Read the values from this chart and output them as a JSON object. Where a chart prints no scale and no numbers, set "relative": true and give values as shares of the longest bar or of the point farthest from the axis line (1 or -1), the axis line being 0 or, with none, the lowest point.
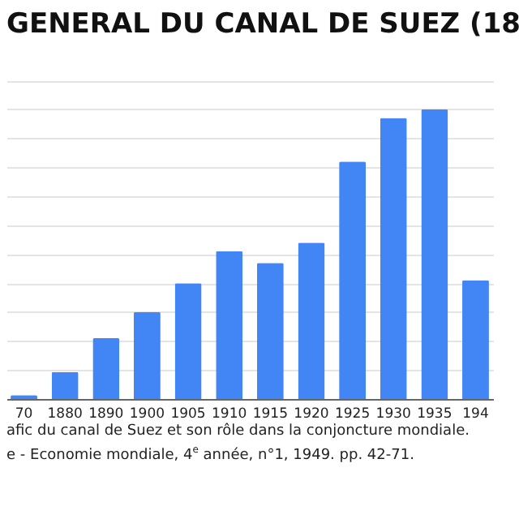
{
  "chart_data": {
    "type": "bar",
    "title": "GENERAL DU CANAL DE SUEZ (18",
    "relative": true,
    "grid": "y",
    "color": "#4285f4",
    "categories": [
      "70",
      "1880",
      "1890",
      "1900",
      "1905",
      "1910",
      "1915",
      "1920",
      "1925",
      "1930",
      "1935",
      "194"
    ],
    "values": [
      0.013,
      0.093,
      0.21,
      0.3,
      0.4,
      0.51,
      0.47,
      0.54,
      0.82,
      0.97,
      1,
      0.41
    ],
    "annotations": [
      "afic du canal de Suez et son rôle dans la conjoncture mondiale.",
      "e - Economie mondiale, 4$^{e}$ année, n°1, 1949. pp. 42-71."
    ]
  }
}
